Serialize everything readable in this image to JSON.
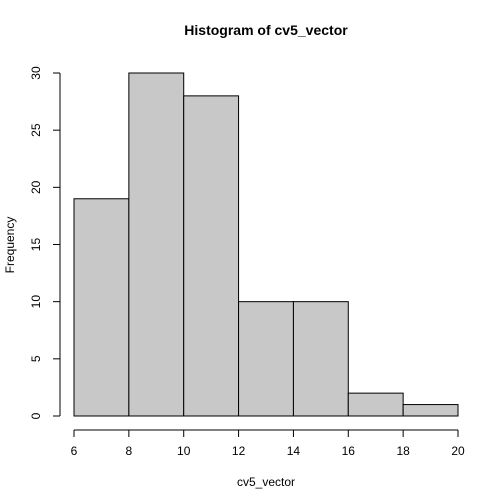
{
  "chart_data": {
    "type": "bar",
    "title": "Histogram of cv5_vector",
    "xlabel": "cv5_vector",
    "ylabel": "Frequency",
    "bins": [
      {
        "start": 6,
        "end": 8,
        "count": 19
      },
      {
        "start": 8,
        "end": 10,
        "count": 30
      },
      {
        "start": 10,
        "end": 12,
        "count": 28
      },
      {
        "start": 12,
        "end": 14,
        "count": 10
      },
      {
        "start": 14,
        "end": 16,
        "count": 10
      },
      {
        "start": 16,
        "end": 18,
        "count": 2
      },
      {
        "start": 18,
        "end": 20,
        "count": 1
      }
    ],
    "xlim": [
      6,
      20
    ],
    "ylim": [
      0,
      30
    ],
    "x_ticks": [
      "6",
      "8",
      "10",
      "12",
      "14",
      "16",
      "18",
      "20"
    ],
    "y_ticks": [
      "0",
      "5",
      "10",
      "15",
      "20",
      "25",
      "30"
    ],
    "grid": false,
    "bar_color": "#c8c8c8"
  }
}
